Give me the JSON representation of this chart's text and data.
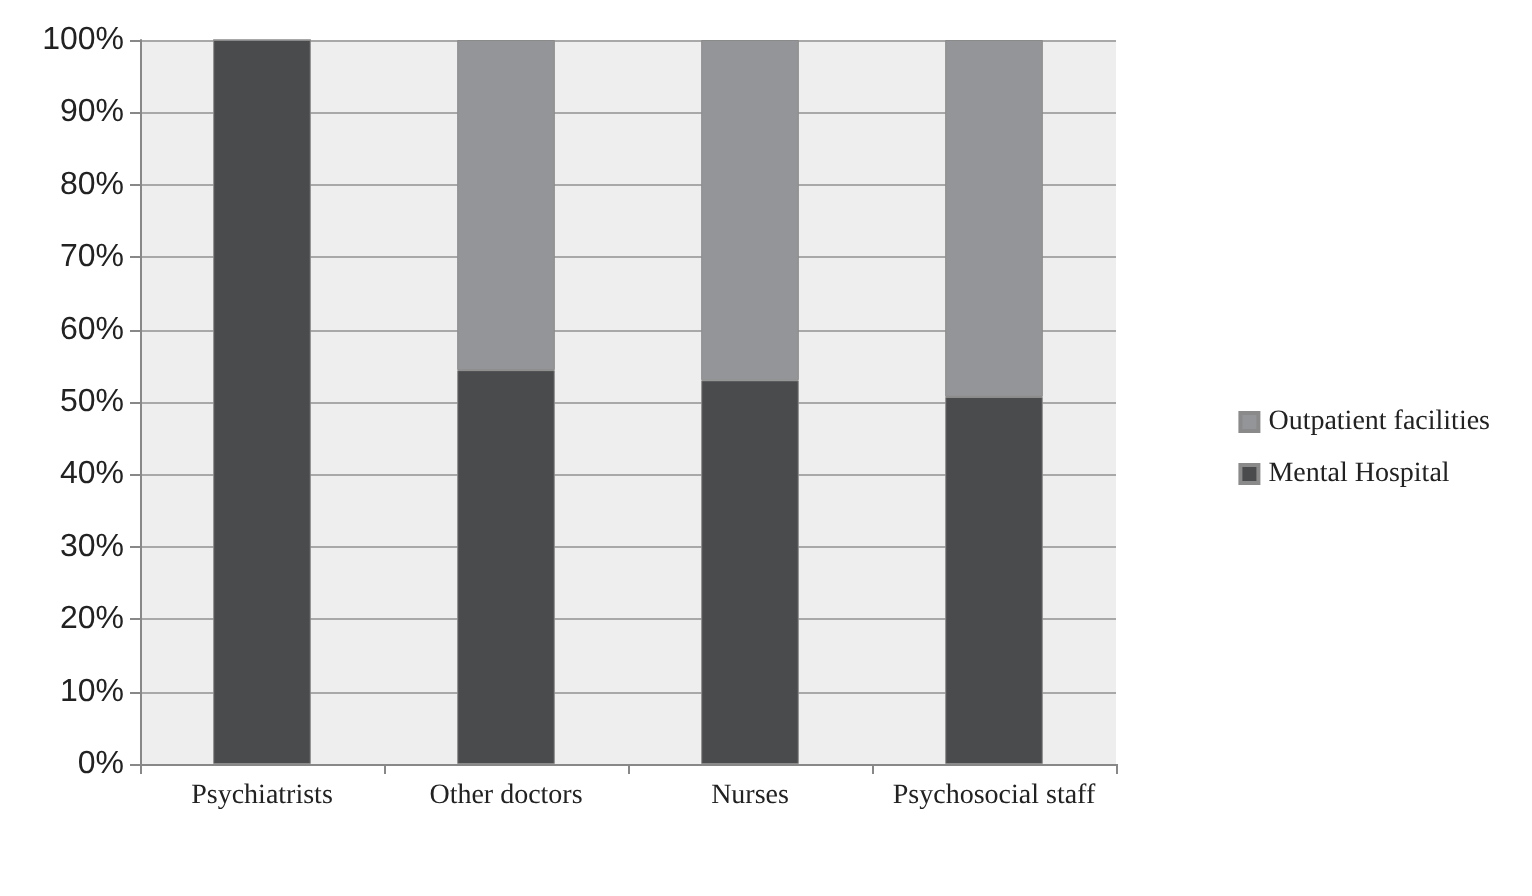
{
  "chart_data": {
    "type": "bar",
    "stacked": true,
    "categories": [
      "Psychiatrists",
      "Other doctors",
      "Nurses",
      "Psychosocial staff"
    ],
    "series": [
      {
        "name": "Mental Hospital",
        "color": "#4a4b4d",
        "values": [
          100,
          54.4,
          53.0,
          50.7
        ]
      },
      {
        "name": "Outpatient facilities",
        "color": "#949598",
        "values": [
          0,
          45.6,
          47.0,
          49.3
        ]
      }
    ],
    "ylim": [
      0,
      100
    ],
    "yticks": [
      {
        "value": 0,
        "label": "0%"
      },
      {
        "value": 10,
        "label": "10%"
      },
      {
        "value": 20,
        "label": "20%"
      },
      {
        "value": 30,
        "label": "30%"
      },
      {
        "value": 40,
        "label": "40%"
      },
      {
        "value": 50,
        "label": "50%"
      },
      {
        "value": 60,
        "label": "60%"
      },
      {
        "value": 70,
        "label": "70%"
      },
      {
        "value": 80,
        "label": "80%"
      },
      {
        "value": 90,
        "label": "90%"
      },
      {
        "value": 100,
        "label": "100%"
      }
    ],
    "grid": "y",
    "legend": "right"
  }
}
